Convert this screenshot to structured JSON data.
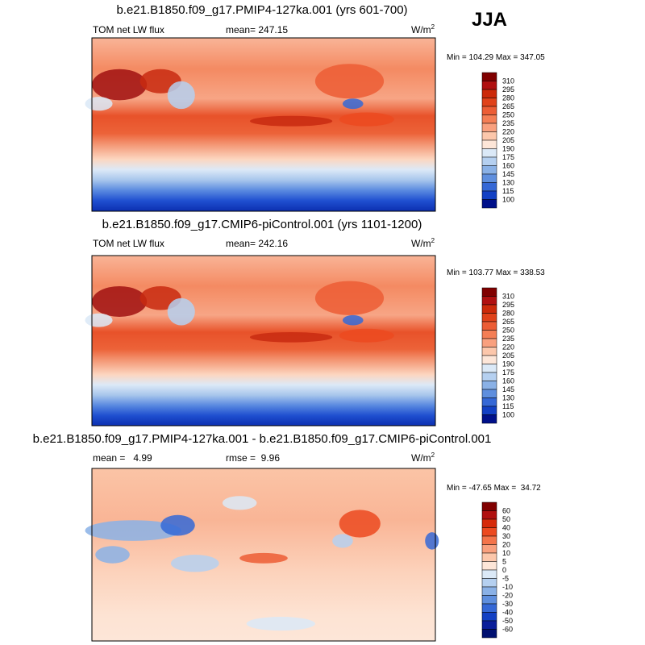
{
  "season": "JJA",
  "panels": [
    {
      "title": "b.e21.B1850.f09_g17.PMIP4-127ka.001 (yrs 601-700)",
      "left": "TOM net LW flux",
      "center": "mean= 247.15",
      "units": "W/m",
      "units_sup": "2",
      "minmax": "Min = 104.29 Max = 347.05",
      "colorbar_labels": [
        310,
        295,
        280,
        265,
        250,
        235,
        220,
        205,
        190,
        175,
        160,
        145,
        130,
        115,
        100
      ]
    },
    {
      "title": "b.e21.B1850.f09_g17.CMIP6-piControl.001 (yrs 1101-1200)",
      "left": "TOM net LW flux",
      "center": "mean= 242.16",
      "units": "W/m",
      "units_sup": "2",
      "minmax": "Min = 103.77 Max = 338.53",
      "colorbar_labels": [
        310,
        295,
        280,
        265,
        250,
        235,
        220,
        205,
        190,
        175,
        160,
        145,
        130,
        115,
        100
      ]
    },
    {
      "title": "b.e21.B1850.f09_g17.PMIP4-127ka.001 - b.e21.B1850.f09_g17.CMIP6-piControl.001",
      "left": "mean =   4.99",
      "center": "rmse =  9.96",
      "units": "W/m",
      "units_sup": "2",
      "minmax": "Min = -47.65 Max =  34.72",
      "colorbar_labels": [
        60,
        50,
        40,
        30,
        20,
        10,
        5,
        0,
        -5,
        -10,
        -20,
        -30,
        -40,
        -50,
        -60
      ]
    }
  ]
}
